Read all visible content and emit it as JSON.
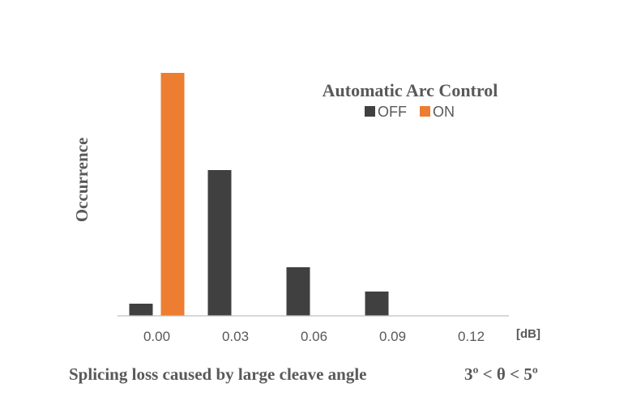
{
  "chart_data": {
    "type": "bar",
    "categories": [
      "0.00",
      "0.03",
      "0.06",
      "0.09",
      "0.12"
    ],
    "series": [
      {
        "name": "OFF",
        "values": [
          5,
          60,
          20,
          10,
          0
        ],
        "color": "#404040"
      },
      {
        "name": "ON",
        "values": [
          100,
          0,
          0,
          0,
          0
        ],
        "color": "#ed7d31"
      }
    ],
    "legend_title": "Automatic Arc Control",
    "x_unit": "[dB]",
    "ylabel": "Occurrence",
    "xlabel": "Splicing loss caused by large cleave angle",
    "xlabel_condition": "3º < θ < 5º",
    "ylim": [
      0,
      100
    ],
    "grid": false,
    "legend_position": "top-right",
    "y_ticks_visible": false
  }
}
